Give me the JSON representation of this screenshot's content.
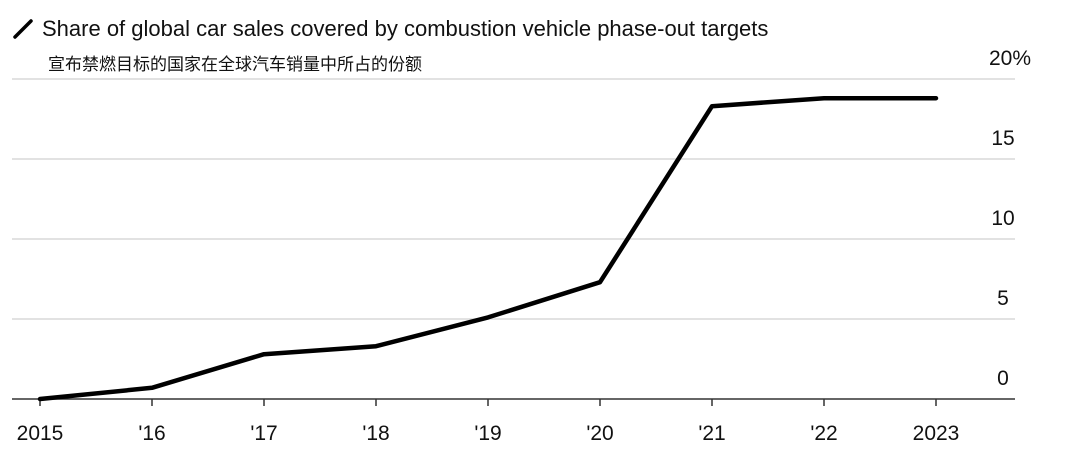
{
  "chart_data": {
    "type": "line",
    "title": "",
    "subtitle": "宣布禁燃目标的国家在全球汽车销量中所占的份额",
    "xlabel": "",
    "ylabel": "",
    "x": [
      "2015",
      "'16",
      "'17",
      "'18",
      "'19",
      "'20",
      "'21",
      "'22",
      "'23"
    ],
    "x_tick_labels": [
      "2015",
      "'16",
      "'17",
      "'18",
      "'19",
      "'20",
      "'21",
      "'22",
      "2023"
    ],
    "y_tick_labels": [
      "0",
      "5",
      "10",
      "15",
      "20%"
    ],
    "y_ticks": [
      0,
      5,
      10,
      15,
      20
    ],
    "ylim": [
      0,
      20
    ],
    "series": [
      {
        "name": "Share of global car sales covered by combustion vehicle phase-out targets",
        "values": [
          0,
          0.7,
          2.8,
          3.3,
          5.1,
          7.3,
          18.3,
          18.8,
          18.8
        ]
      }
    ],
    "grid": true,
    "legend_position": "top-left",
    "colors": {
      "line": "#000000",
      "grid": "#d9d9d9",
      "axis": "#333333"
    }
  }
}
